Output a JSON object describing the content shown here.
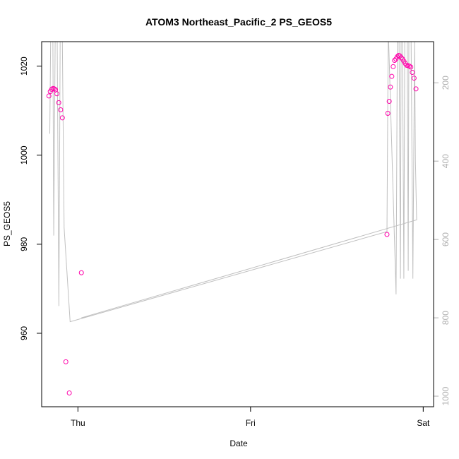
{
  "chart_data": {
    "type": "scatter",
    "title": "ATOM3 Northeast_Pacific_2 PS_GEOS5",
    "xlabel": "Date",
    "ylabel": "PS_GEOS5",
    "x_ticks": [
      {
        "label": "Thu",
        "value": 0
      },
      {
        "label": "Fri",
        "value": 1
      },
      {
        "label": "Sat",
        "value": 2
      }
    ],
    "xlim": [
      -0.21,
      2.06
    ],
    "ylim": [
      943.5,
      1025.5
    ],
    "y_ticks": [
      960,
      980,
      1000,
      1020
    ],
    "secondary_axis": {
      "ticks": [
        200,
        400,
        600,
        800,
        1000
      ],
      "color": "#b0b0b0",
      "inverted": true,
      "lim": [
        95,
        1027
      ]
    },
    "series": [
      {
        "kind": "points",
        "color": "#ff00aa",
        "points": [
          [
            -0.168,
            1013.3
          ],
          [
            -0.16,
            1014.3
          ],
          [
            -0.152,
            1014.8
          ],
          [
            -0.144,
            1015.0
          ],
          [
            -0.137,
            1014.9
          ],
          [
            -0.13,
            1014.7
          ],
          [
            -0.122,
            1013.8
          ],
          [
            -0.111,
            1011.8
          ],
          [
            -0.1,
            1010.2
          ],
          [
            -0.09,
            1008.4
          ],
          [
            -0.07,
            953.6
          ],
          [
            -0.05,
            946.6
          ],
          [
            0.02,
            973.6
          ],
          [
            1.79,
            982.2
          ],
          [
            1.795,
            1009.4
          ],
          [
            1.803,
            1012.1
          ],
          [
            1.81,
            1015.3
          ],
          [
            1.818,
            1017.7
          ],
          [
            1.826,
            1019.9
          ],
          [
            1.834,
            1021.3
          ],
          [
            1.842,
            1021.6
          ],
          [
            1.849,
            1022.1
          ],
          [
            1.857,
            1022.4
          ],
          [
            1.865,
            1022.3
          ],
          [
            1.873,
            1021.9
          ],
          [
            1.88,
            1021.6
          ],
          [
            1.888,
            1021.1
          ],
          [
            1.896,
            1020.6
          ],
          [
            1.904,
            1020.2
          ],
          [
            1.912,
            1020.1
          ],
          [
            1.92,
            1020.0
          ],
          [
            1.928,
            1019.8
          ],
          [
            1.937,
            1018.6
          ],
          [
            1.947,
            1017.3
          ],
          [
            1.958,
            1014.9
          ]
        ]
      },
      {
        "kind": "line",
        "axis": "secondary",
        "color": "#c0c0c0",
        "points": [
          [
            -0.163,
            330
          ],
          [
            -0.158,
            95
          ],
          [
            -0.153,
            95
          ],
          [
            -0.145,
            95
          ],
          [
            -0.14,
            590
          ],
          [
            -0.132,
            95
          ],
          [
            -0.127,
            95
          ],
          [
            -0.12,
            95
          ],
          [
            -0.11,
            770
          ],
          [
            -0.103,
            95
          ],
          [
            -0.09,
            95
          ],
          [
            -0.08,
            570
          ],
          [
            -0.045,
            810
          ],
          [
            1.79,
            580
          ],
          [
            1.797,
            95
          ],
          [
            1.8,
            95
          ],
          [
            1.843,
            740
          ],
          [
            1.85,
            95
          ],
          [
            1.86,
            95
          ],
          [
            1.868,
            700
          ],
          [
            1.872,
            95
          ],
          [
            1.88,
            95
          ],
          [
            1.888,
            700
          ],
          [
            1.893,
            95
          ],
          [
            1.907,
            95
          ],
          [
            1.913,
            680
          ],
          [
            1.917,
            95
          ],
          [
            1.93,
            95
          ],
          [
            1.94,
            700
          ],
          [
            1.95,
            95
          ],
          [
            1.955,
            400
          ],
          [
            1.962,
            550
          ],
          [
            0.02,
            800
          ]
        ]
      }
    ]
  }
}
